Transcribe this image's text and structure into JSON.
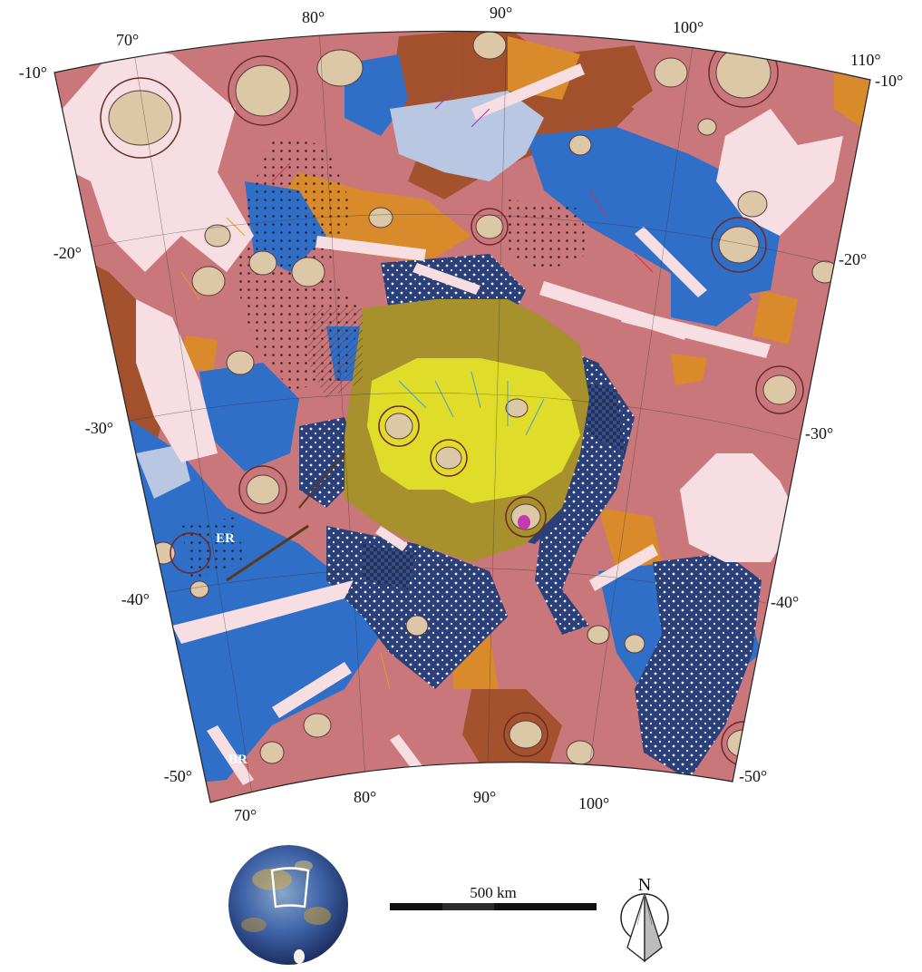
{
  "map": {
    "grid_labels": {
      "top": [
        "70°",
        "80°",
        "90°",
        "100°",
        "110°"
      ],
      "bottom": [
        "70°",
        "80°",
        "90°",
        "100°"
      ],
      "left": [
        "-10°",
        "-20°",
        "-30°",
        "-40°",
        "-50°"
      ],
      "right": [
        "-10°",
        "-20°",
        "-30°",
        "-40°",
        "-50°"
      ]
    },
    "annotations": [
      "ER",
      "BR"
    ],
    "colors": {
      "intercrater_plains": "#c9777a",
      "smooth_plains": "#2f6fc8",
      "dark_smooth_plains": "#2b3f78",
      "basin_floor": "#e0dc2a",
      "basin_rim": "#a6912c",
      "orange_unit": "#d98a2a",
      "brown_unit": "#a2502a",
      "crater_floor": "#dcc7a6",
      "pale_blue_unit": "#b9c7e3",
      "bright_ray": "#f6dee2",
      "magenta_unit": "#c23ab0"
    }
  },
  "scale_bar": {
    "label": "500 km"
  },
  "north_arrow": {
    "label": "N"
  },
  "inset": {
    "title": ""
  }
}
